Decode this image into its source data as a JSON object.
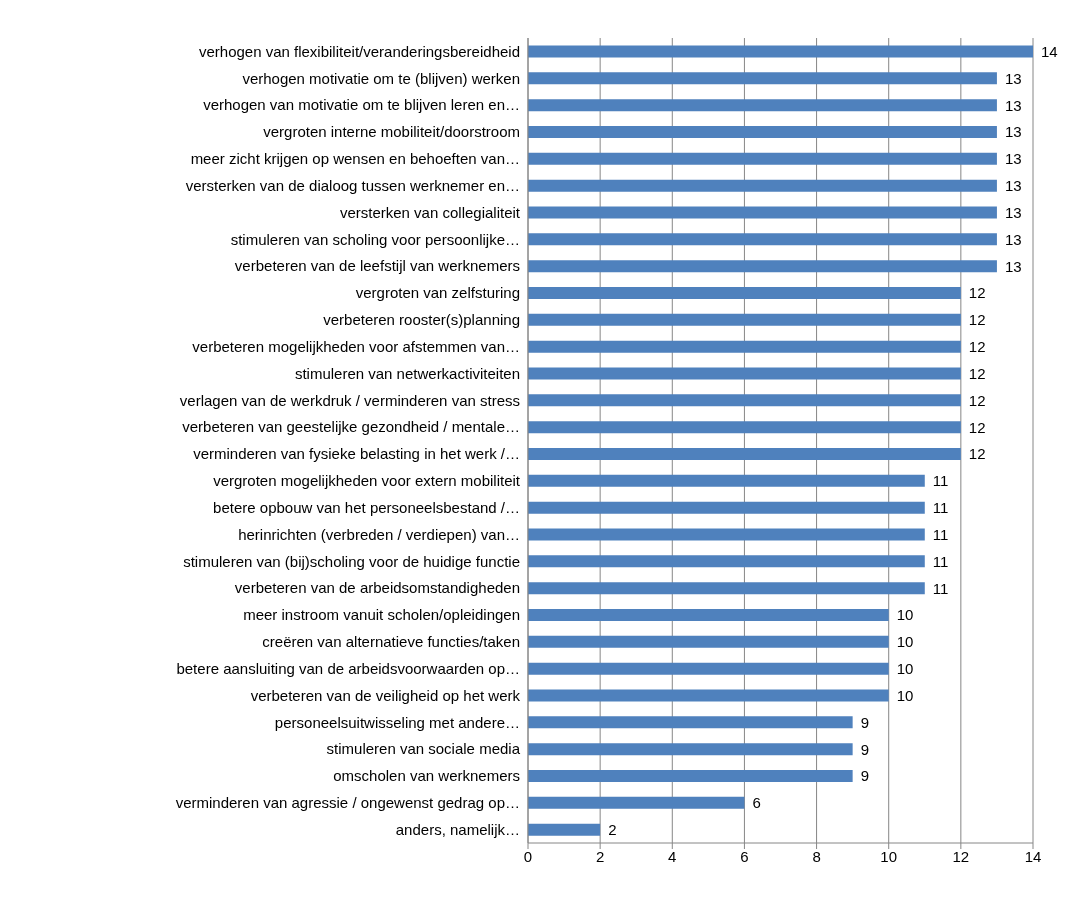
{
  "chart_data": {
    "type": "bar",
    "orientation": "horizontal",
    "categories": [
      "verhogen van flexibiliteit/veranderingsbereidheid",
      "verhogen motivatie om te (blijven) werken",
      "verhogen van motivatie om te blijven leren en…",
      "vergroten interne mobiliteit/doorstroom",
      "meer zicht krijgen op wensen en behoeften van…",
      "versterken van de dialoog tussen werknemer en…",
      "versterken van collegialiteit",
      "stimuleren van scholing voor persoonlijke…",
      "verbeteren van de leefstijl van werknemers",
      "vergroten van zelfsturing",
      "verbeteren rooster(s)planning",
      "verbeteren mogelijkheden voor afstemmen van…",
      "stimuleren van netwerkactiviteiten",
      "verlagen van de werkdruk / verminderen van stress",
      "verbeteren van geestelijke gezondheid / mentale…",
      "verminderen van fysieke belasting in het werk /…",
      "vergroten mogelijkheden voor extern mobiliteit",
      "betere opbouw van het personeelsbestand /…",
      "herinrichten (verbreden / verdiepen) van…",
      "stimuleren van (bij)scholing voor de huidige functie",
      "verbeteren van de arbeidsomstandigheden",
      "meer instroom vanuit scholen/opleidingen",
      "creëren van alternatieve functies/taken",
      "betere aansluiting van de arbeidsvoorwaarden op…",
      "verbeteren van de veiligheid op het werk",
      "personeelsuitwisseling met andere…",
      "stimuleren van sociale media",
      "omscholen van werknemers",
      "verminderen van agressie / ongewenst gedrag op…",
      "anders, namelijk…"
    ],
    "values": [
      14,
      13,
      13,
      13,
      13,
      13,
      13,
      13,
      13,
      12,
      12,
      12,
      12,
      12,
      12,
      12,
      11,
      11,
      11,
      11,
      11,
      10,
      10,
      10,
      10,
      9,
      9,
      9,
      6,
      2
    ],
    "color": "#4f81bd",
    "xlim": [
      0,
      14
    ],
    "xticks": [
      0,
      2,
      4,
      6,
      8,
      10,
      12,
      14
    ],
    "grid": "x",
    "data_labels": true
  }
}
